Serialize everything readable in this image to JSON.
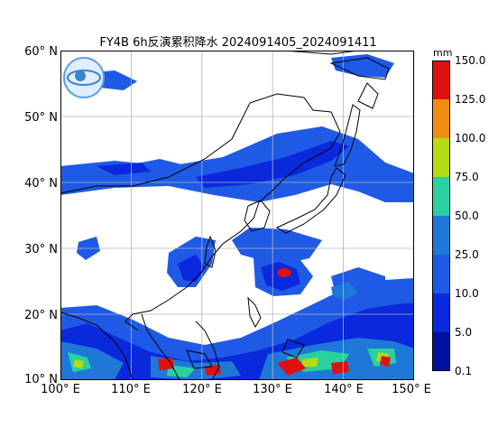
{
  "title": "FY4B 6h反演累积降水 2024091405_2024091411",
  "lat_labels": [
    "60° N",
    "50° N",
    "40° N",
    "30° N",
    "20° N",
    "10° N"
  ],
  "lon_labels": [
    "100° E",
    "110° E",
    "120° E",
    "130° E",
    "140° E",
    "150° E"
  ],
  "colorbar": {
    "unit": "mm",
    "ticks": [
      "150.0",
      "125.0",
      "100.0",
      "75.0",
      "50.0",
      "25.0",
      "10.0",
      "5.0",
      "0.1"
    ],
    "colors": [
      "#e01010",
      "#f08c10",
      "#b4dc14",
      "#2ad0a0",
      "#1e78d8",
      "#1e5ae6",
      "#0a28dc",
      "#0010a0"
    ]
  },
  "map_extent": {
    "lon": [
      100,
      150
    ],
    "lat": [
      10,
      60
    ]
  },
  "icons": {
    "logo": "satellite-center-logo"
  }
}
